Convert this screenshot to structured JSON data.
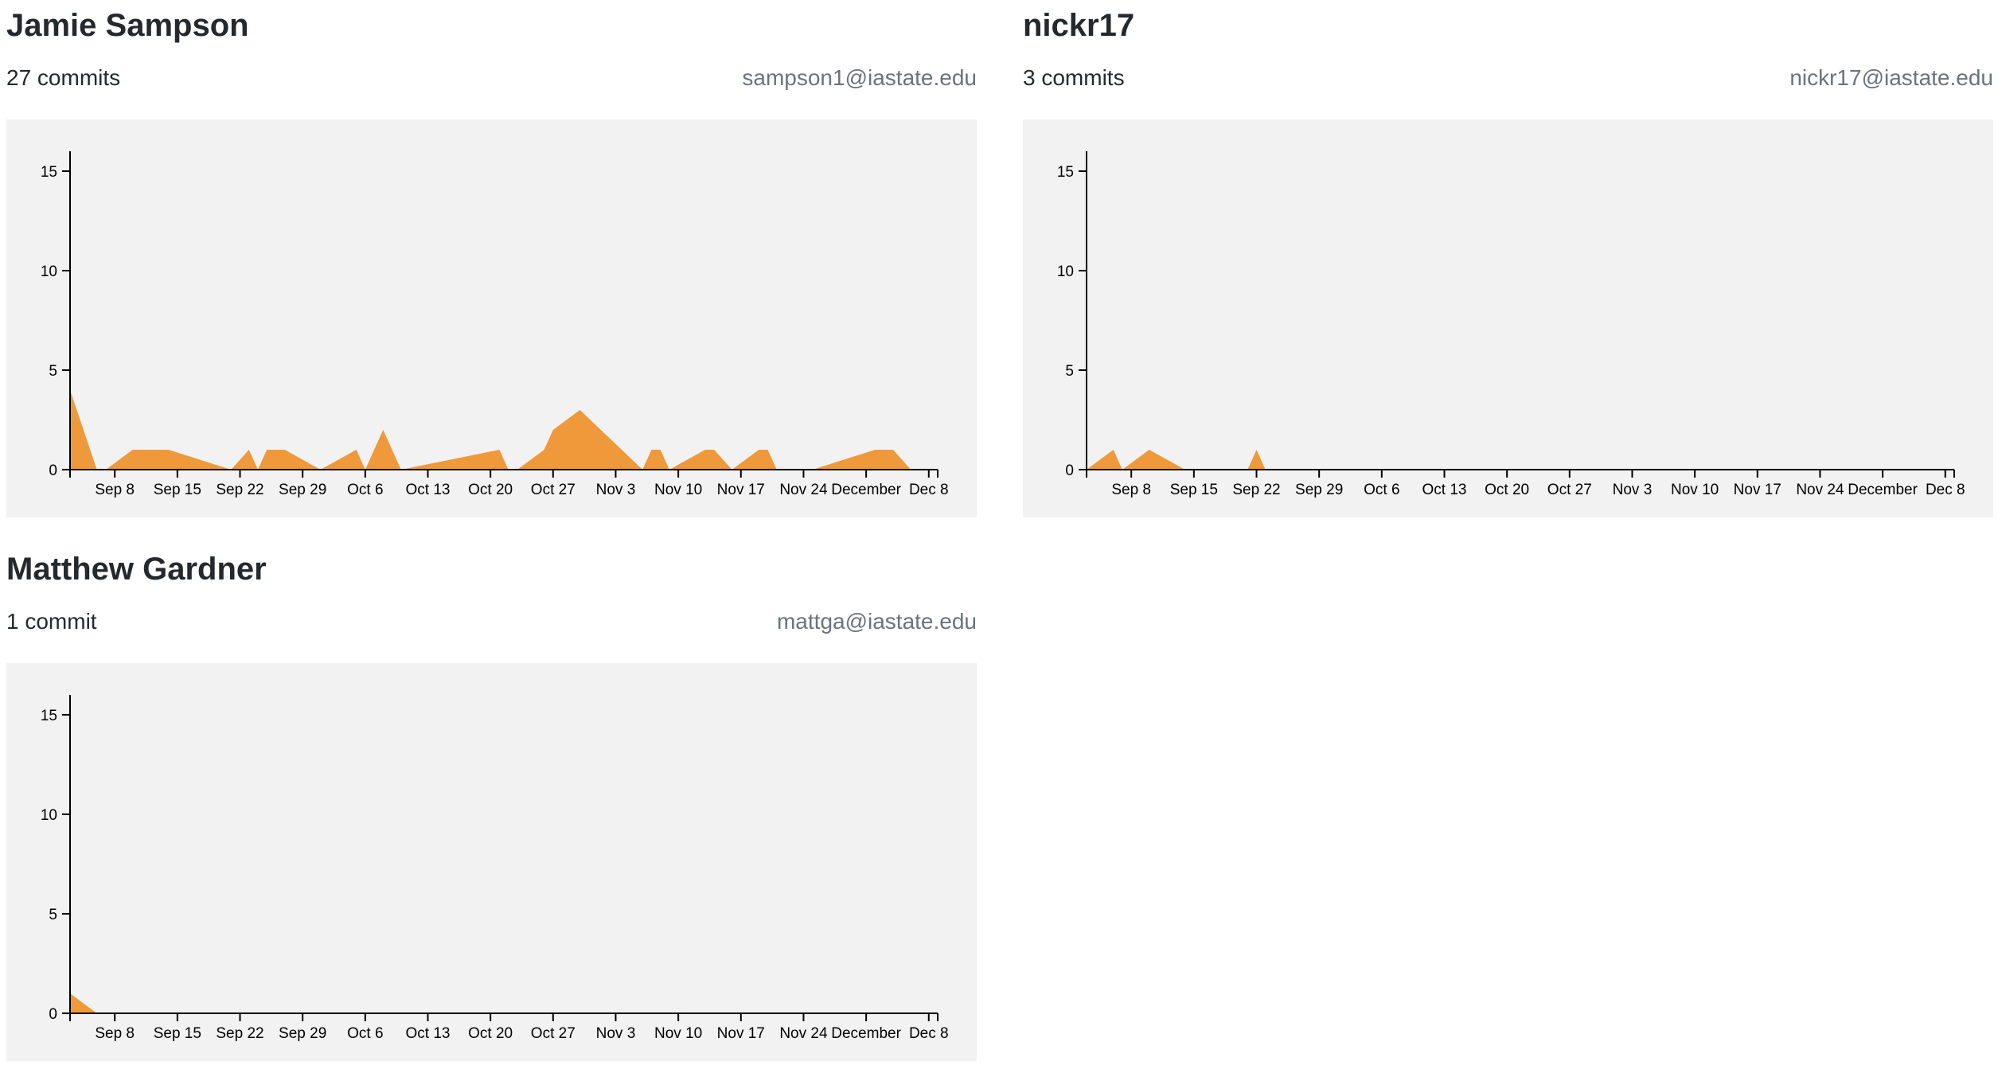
{
  "contributors": [
    {
      "name": "Jamie Sampson",
      "commits_label": "27 commits",
      "email": "sampson1@iastate.edu"
    },
    {
      "name": "nickr17",
      "commits_label": "3 commits",
      "email": "nickr17@iastate.edu"
    },
    {
      "name": "Matthew Gardner",
      "commits_label": "1 commit",
      "email": "mattga@iastate.edu"
    }
  ],
  "colors": {
    "area": "#f0993a",
    "background": "#f2f2f2",
    "axis": "#000000"
  },
  "chart_data": [
    {
      "type": "area",
      "title": "",
      "xlabel": "",
      "ylabel": "",
      "ylim": [
        0,
        16
      ],
      "xlim": [
        "2019-09-03",
        "2019-12-09"
      ],
      "y_ticks": [
        "0",
        "5",
        "10",
        "15"
      ],
      "x_ticks": [
        {
          "date": "2019-09-08",
          "label": "Sep 8"
        },
        {
          "date": "2019-09-15",
          "label": "Sep 15"
        },
        {
          "date": "2019-09-22",
          "label": "Sep 22"
        },
        {
          "date": "2019-09-29",
          "label": "Sep 29"
        },
        {
          "date": "2019-10-06",
          "label": "Oct 6"
        },
        {
          "date": "2019-10-13",
          "label": "Oct 13"
        },
        {
          "date": "2019-10-20",
          "label": "Oct 20"
        },
        {
          "date": "2019-10-27",
          "label": "Oct 27"
        },
        {
          "date": "2019-11-03",
          "label": "Nov 3"
        },
        {
          "date": "2019-11-10",
          "label": "Nov 10"
        },
        {
          "date": "2019-11-17",
          "label": "Nov 17"
        },
        {
          "date": "2019-11-24",
          "label": "Nov 24"
        },
        {
          "date": "2019-12-01",
          "label": "December"
        },
        {
          "date": "2019-12-08",
          "label": "Dec 8"
        }
      ],
      "series": [
        {
          "x": [
            "2019-09-03",
            "2019-09-06",
            "2019-09-07",
            "2019-09-10",
            "2019-09-14",
            "2019-09-21",
            "2019-09-23",
            "2019-09-24",
            "2019-09-25",
            "2019-09-27",
            "2019-10-01",
            "2019-10-05",
            "2019-10-06",
            "2019-10-08",
            "2019-10-10",
            "2019-10-21",
            "2019-10-22",
            "2019-10-23",
            "2019-10-26",
            "2019-10-27",
            "2019-10-30",
            "2019-11-06",
            "2019-11-07",
            "2019-11-08",
            "2019-11-09",
            "2019-11-13",
            "2019-11-14",
            "2019-11-16",
            "2019-11-19",
            "2019-11-20",
            "2019-11-21",
            "2019-11-24",
            "2019-11-25",
            "2019-12-02",
            "2019-12-04",
            "2019-12-06"
          ],
          "values": [
            4,
            0,
            0,
            1,
            1,
            0,
            1,
            0,
            1,
            1,
            0,
            1,
            0,
            2,
            0,
            1,
            0,
            0,
            1,
            2,
            3,
            0,
            1,
            1,
            0,
            1,
            1,
            0,
            1,
            1,
            0,
            0,
            0,
            1,
            1,
            0
          ]
        }
      ]
    },
    {
      "type": "area",
      "title": "",
      "xlabel": "",
      "ylabel": "",
      "ylim": [
        0,
        16
      ],
      "xlim": [
        "2019-09-03",
        "2019-12-09"
      ],
      "y_ticks": [
        "0",
        "5",
        "10",
        "15"
      ],
      "x_ticks": [
        {
          "date": "2019-09-08",
          "label": "Sep 8"
        },
        {
          "date": "2019-09-15",
          "label": "Sep 15"
        },
        {
          "date": "2019-09-22",
          "label": "Sep 22"
        },
        {
          "date": "2019-09-29",
          "label": "Sep 29"
        },
        {
          "date": "2019-10-06",
          "label": "Oct 6"
        },
        {
          "date": "2019-10-13",
          "label": "Oct 13"
        },
        {
          "date": "2019-10-20",
          "label": "Oct 20"
        },
        {
          "date": "2019-10-27",
          "label": "Oct 27"
        },
        {
          "date": "2019-11-03",
          "label": "Nov 3"
        },
        {
          "date": "2019-11-10",
          "label": "Nov 10"
        },
        {
          "date": "2019-11-17",
          "label": "Nov 17"
        },
        {
          "date": "2019-11-24",
          "label": "Nov 24"
        },
        {
          "date": "2019-12-01",
          "label": "December"
        },
        {
          "date": "2019-12-08",
          "label": "Dec 8"
        }
      ],
      "series": [
        {
          "x": [
            "2019-09-03",
            "2019-09-06",
            "2019-09-07",
            "2019-09-10",
            "2019-09-14",
            "2019-09-21",
            "2019-09-22",
            "2019-09-23"
          ],
          "values": [
            0,
            1,
            0,
            1,
            0,
            0,
            1,
            0
          ]
        }
      ]
    },
    {
      "type": "area",
      "title": "",
      "xlabel": "",
      "ylabel": "",
      "ylim": [
        0,
        16
      ],
      "xlim": [
        "2019-09-03",
        "2019-12-09"
      ],
      "y_ticks": [
        "0",
        "5",
        "10",
        "15"
      ],
      "x_ticks": [
        {
          "date": "2019-09-08",
          "label": "Sep 8"
        },
        {
          "date": "2019-09-15",
          "label": "Sep 15"
        },
        {
          "date": "2019-09-22",
          "label": "Sep 22"
        },
        {
          "date": "2019-09-29",
          "label": "Sep 29"
        },
        {
          "date": "2019-10-06",
          "label": "Oct 6"
        },
        {
          "date": "2019-10-13",
          "label": "Oct 13"
        },
        {
          "date": "2019-10-20",
          "label": "Oct 20"
        },
        {
          "date": "2019-10-27",
          "label": "Oct 27"
        },
        {
          "date": "2019-11-03",
          "label": "Nov 3"
        },
        {
          "date": "2019-11-10",
          "label": "Nov 10"
        },
        {
          "date": "2019-11-17",
          "label": "Nov 17"
        },
        {
          "date": "2019-11-24",
          "label": "Nov 24"
        },
        {
          "date": "2019-12-01",
          "label": "December"
        },
        {
          "date": "2019-12-08",
          "label": "Dec 8"
        }
      ],
      "series": [
        {
          "x": [
            "2019-09-03",
            "2019-09-06"
          ],
          "values": [
            1,
            0
          ]
        }
      ]
    }
  ]
}
